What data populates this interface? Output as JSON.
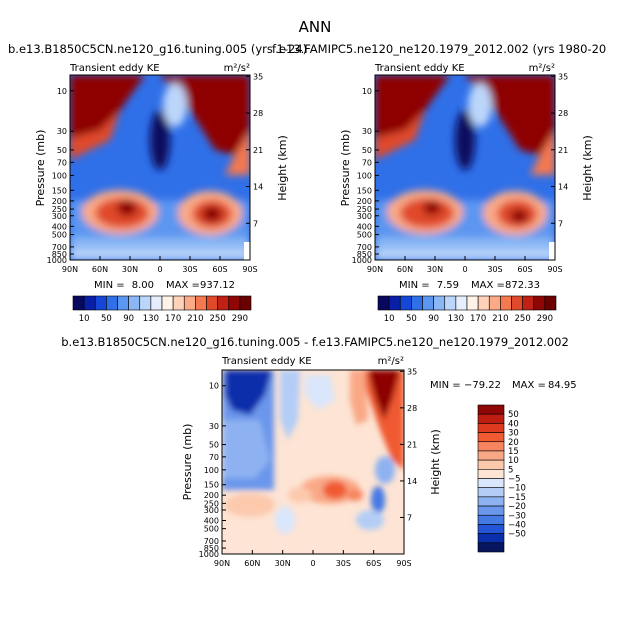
{
  "figure": {
    "title": "ANN",
    "panel1_title": "b.e13.B1850C5CN.ne120_g16.tuning.005 (yrs 1-24)",
    "panel2_title": "f.e13.FAMIPC5.ne120_ne120.1979_2012.002 (yrs 1980-20",
    "diff_title": "b.e13.B1850C5CN.ne120_g16.tuning.005 - f.e13.FAMIPC5.ne120_ne120.1979_2012.002",
    "variable": "Transient eddy KE",
    "units": "m²/s²"
  },
  "chart_data": [
    {
      "type": "heatmap",
      "name": "b.e13.B1850C5CN.ne120_g16.tuning.005 (yrs 1-24)",
      "xlabel": "",
      "ylabel": "Pressure (mb)",
      "y2label": "Height (km)",
      "x_ticks": [
        "90N",
        "60N",
        "30N",
        "0",
        "30S",
        "60S",
        "90S"
      ],
      "y_ticks": [
        "10",
        "30",
        "50",
        "70",
        "100",
        "150",
        "200",
        "250",
        "300",
        "400",
        "500",
        "700",
        "850",
        "1000"
      ],
      "y2_ticks": [
        "35",
        "28",
        "21",
        "14",
        "7"
      ],
      "min": 8.0,
      "max": 937.12,
      "min_label": "MIN =",
      "max_label": "MAX =",
      "min_text": "8.00",
      "max_text": "937.12",
      "colorbar_levels": [
        10,
        50,
        90,
        130,
        170,
        210,
        250,
        290
      ],
      "colorbar_labels": [
        "10",
        "50",
        "90",
        "130",
        "170",
        "210",
        "250",
        "290"
      ]
    },
    {
      "type": "heatmap",
      "name": "f.e13.FAMIPC5.ne120_ne120.1979_2012.002 (yrs 1980-20",
      "xlabel": "",
      "ylabel": "Pressure (mb)",
      "y2label": "Height (km)",
      "x_ticks": [
        "90N",
        "60N",
        "30N",
        "0",
        "30S",
        "60S",
        "90S"
      ],
      "y_ticks": [
        "10",
        "30",
        "50",
        "70",
        "100",
        "150",
        "200",
        "250",
        "300",
        "400",
        "500",
        "700",
        "850",
        "1000"
      ],
      "y2_ticks": [
        "35",
        "28",
        "21",
        "14",
        "7"
      ],
      "min": 7.59,
      "max": 872.33,
      "min_label": "MIN =",
      "max_label": "MAX =",
      "min_text": "7.59",
      "max_text": "872.33",
      "colorbar_levels": [
        10,
        50,
        90,
        130,
        170,
        210,
        250,
        290
      ],
      "colorbar_labels": [
        "10",
        "50",
        "90",
        "130",
        "170",
        "210",
        "250",
        "290"
      ]
    },
    {
      "type": "heatmap",
      "name": "difference",
      "xlabel": "",
      "ylabel": "Pressure (mb)",
      "y2label": "Height (km)",
      "x_ticks": [
        "90N",
        "60N",
        "30N",
        "0",
        "30S",
        "60S",
        "90S"
      ],
      "y_ticks": [
        "10",
        "30",
        "50",
        "70",
        "100",
        "150",
        "200",
        "250",
        "300",
        "400",
        "500",
        "700",
        "850",
        "1000"
      ],
      "y2_ticks": [
        "35",
        "28",
        "21",
        "14",
        "7"
      ],
      "min": -79.22,
      "max": 84.95,
      "min_label": "MIN =",
      "max_label": "MAX =",
      "min_text": "−79.22",
      "max_text": "84.95",
      "colorbar_levels": [
        50,
        40,
        30,
        20,
        15,
        10,
        5,
        -5,
        -10,
        -15,
        -20,
        -30,
        -40,
        -50
      ],
      "colorbar_labels": [
        "50",
        "40",
        "30",
        "20",
        "15",
        "10",
        "5",
        "−5",
        "−10",
        "−15",
        "−20",
        "−30",
        "−40",
        "−50"
      ]
    }
  ],
  "colors": {
    "abs_scale": [
      "#08085e",
      "#0a1fa8",
      "#1446d8",
      "#2f6fe8",
      "#5b96f0",
      "#8bb8f5",
      "#bcd6fa",
      "#e6eefc",
      "#fff2e6",
      "#fdd2b8",
      "#fbaa87",
      "#f5784e",
      "#e04a2a",
      "#c02114",
      "#8e0606",
      "#6a0000"
    ],
    "diff_scale": [
      "#8e0606",
      "#c01d12",
      "#dd3a1f",
      "#ef5a33",
      "#f6845e",
      "#f9a886",
      "#fcc9ad",
      "#fde4d4",
      "#d9e6fb",
      "#b3cdf6",
      "#8eb2f1",
      "#6a96ec",
      "#4579e4",
      "#2455d6",
      "#0a2faa",
      "#06155e"
    ]
  }
}
